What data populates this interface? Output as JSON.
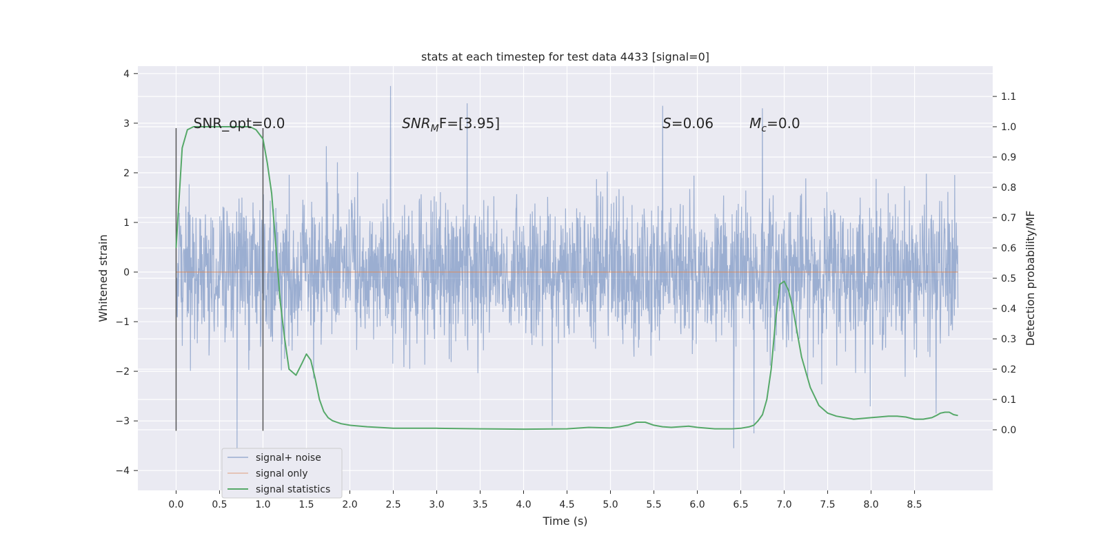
{
  "chart_data": {
    "type": "line",
    "title": "stats at each timestep for test data 4433 [signal=0]",
    "xlabel": "Time (s)",
    "ylabel_left": "Whitened strain",
    "ylabel_right": "Detection probability/MF",
    "xlim": [
      -0.44,
      9.4
    ],
    "ylim_left": [
      -4.4,
      4.15
    ],
    "ylim_right": [
      -0.2,
      1.2
    ],
    "x_ticks": [
      "0.0",
      "0.5",
      "1.0",
      "1.5",
      "2.0",
      "2.5",
      "3.0",
      "3.5",
      "4.0",
      "4.5",
      "5.0",
      "5.5",
      "6.0",
      "6.5",
      "7.0",
      "7.5",
      "8.0",
      "8.5"
    ],
    "x_tick_values": [
      0,
      0.5,
      1,
      1.5,
      2,
      2.5,
      3,
      3.5,
      4,
      4.5,
      5,
      5.5,
      6,
      6.5,
      7,
      7.5,
      8,
      8.5
    ],
    "y_left_ticks": [
      "4",
      "3",
      "2",
      "1",
      "0",
      "−1",
      "−2",
      "−3",
      "−4"
    ],
    "y_left_tick_values": [
      4,
      3,
      2,
      1,
      0,
      -1,
      -2,
      -3,
      -4
    ],
    "y_right_ticks": [
      "1.1",
      "1.0",
      "0.9",
      "0.8",
      "0.7",
      "0.6",
      "0.5",
      "0.4",
      "0.3",
      "0.2",
      "0.1",
      "0.0"
    ],
    "y_right_tick_values": [
      1.1,
      1.0,
      0.9,
      0.8,
      0.7,
      0.6,
      0.5,
      0.4,
      0.3,
      0.2,
      0.1,
      0.0
    ],
    "grid": true,
    "legend_position": "lower-left",
    "annotations": [
      {
        "id": "snr-opt",
        "text": "SNR_opt=0.0",
        "x": 0.2,
        "y_left": 3.0
      },
      {
        "id": "snr-mf",
        "text": "SNR",
        "sub": "M",
        "rest": "F=[3.95]",
        "x": 2.6,
        "y_left": 3.0,
        "italic": true
      },
      {
        "id": "s-value",
        "text": "S",
        "rest": "=0.06",
        "x": 5.6,
        "y_left": 3.0,
        "italic": true
      },
      {
        "id": "mc-value",
        "text": "M",
        "sub": "c",
        "rest": "=0.0",
        "x": 6.6,
        "y_left": 3.0,
        "italic": true
      }
    ],
    "vertical_lines": [
      {
        "x": 0.0,
        "y_left": [
          -3.2,
          2.9
        ],
        "color": "#555555"
      },
      {
        "x": 1.0,
        "y_left": [
          -3.2,
          2.9
        ],
        "color": "#555555"
      }
    ],
    "series": [
      {
        "name": "signal+ noise",
        "color": "#4c72b0",
        "axis": "left",
        "style": "noise",
        "x_range": [
          0.0,
          9.0
        ],
        "std": 0.72,
        "spikes": [
          [
            2.47,
            3.75
          ],
          [
            3.35,
            3.4
          ],
          [
            5.6,
            3.35
          ],
          [
            6.75,
            3.3
          ],
          [
            0.7,
            -3.55
          ],
          [
            6.42,
            -3.55
          ],
          [
            6.65,
            -3.25
          ],
          [
            4.33,
            -3.1
          ],
          [
            8.75,
            -2.85
          ]
        ]
      },
      {
        "name": "signal only",
        "color": "#dd8452",
        "axis": "left",
        "x": [
          0.0,
          9.0
        ],
        "values": [
          0.0,
          0.0
        ]
      },
      {
        "name": "signal statistics",
        "color": "#55a868",
        "axis": "right",
        "x": [
          0.0,
          0.07,
          0.13,
          0.2,
          0.3,
          0.5,
          0.7,
          0.85,
          0.92,
          1.0,
          1.05,
          1.1,
          1.15,
          1.2,
          1.25,
          1.3,
          1.38,
          1.45,
          1.5,
          1.55,
          1.6,
          1.65,
          1.7,
          1.75,
          1.8,
          1.9,
          2.0,
          2.2,
          2.5,
          2.8,
          3.0,
          3.5,
          4.0,
          4.5,
          4.75,
          5.0,
          5.1,
          5.2,
          5.3,
          5.4,
          5.5,
          5.6,
          5.7,
          5.9,
          6.0,
          6.2,
          6.4,
          6.5,
          6.6,
          6.65,
          6.7,
          6.75,
          6.8,
          6.85,
          6.9,
          6.95,
          7.0,
          7.05,
          7.1,
          7.15,
          7.2,
          7.3,
          7.4,
          7.5,
          7.6,
          7.8,
          8.0,
          8.2,
          8.3,
          8.4,
          8.5,
          8.6,
          8.7,
          8.75,
          8.8,
          8.85,
          8.9,
          8.95,
          9.0
        ],
        "values": [
          0.6,
          0.93,
          0.99,
          1.0,
          1.0,
          1.0,
          1.0,
          1.0,
          0.99,
          0.96,
          0.88,
          0.78,
          0.6,
          0.42,
          0.3,
          0.2,
          0.18,
          0.22,
          0.25,
          0.23,
          0.17,
          0.1,
          0.06,
          0.04,
          0.03,
          0.02,
          0.015,
          0.01,
          0.005,
          0.005,
          0.005,
          0.003,
          0.002,
          0.003,
          0.008,
          0.006,
          0.01,
          0.015,
          0.025,
          0.025,
          0.015,
          0.01,
          0.008,
          0.012,
          0.008,
          0.003,
          0.003,
          0.005,
          0.01,
          0.015,
          0.03,
          0.05,
          0.1,
          0.2,
          0.36,
          0.48,
          0.49,
          0.46,
          0.4,
          0.32,
          0.24,
          0.14,
          0.08,
          0.055,
          0.045,
          0.035,
          0.04,
          0.045,
          0.045,
          0.042,
          0.035,
          0.035,
          0.04,
          0.047,
          0.055,
          0.058,
          0.058,
          0.05,
          0.047
        ]
      }
    ]
  }
}
